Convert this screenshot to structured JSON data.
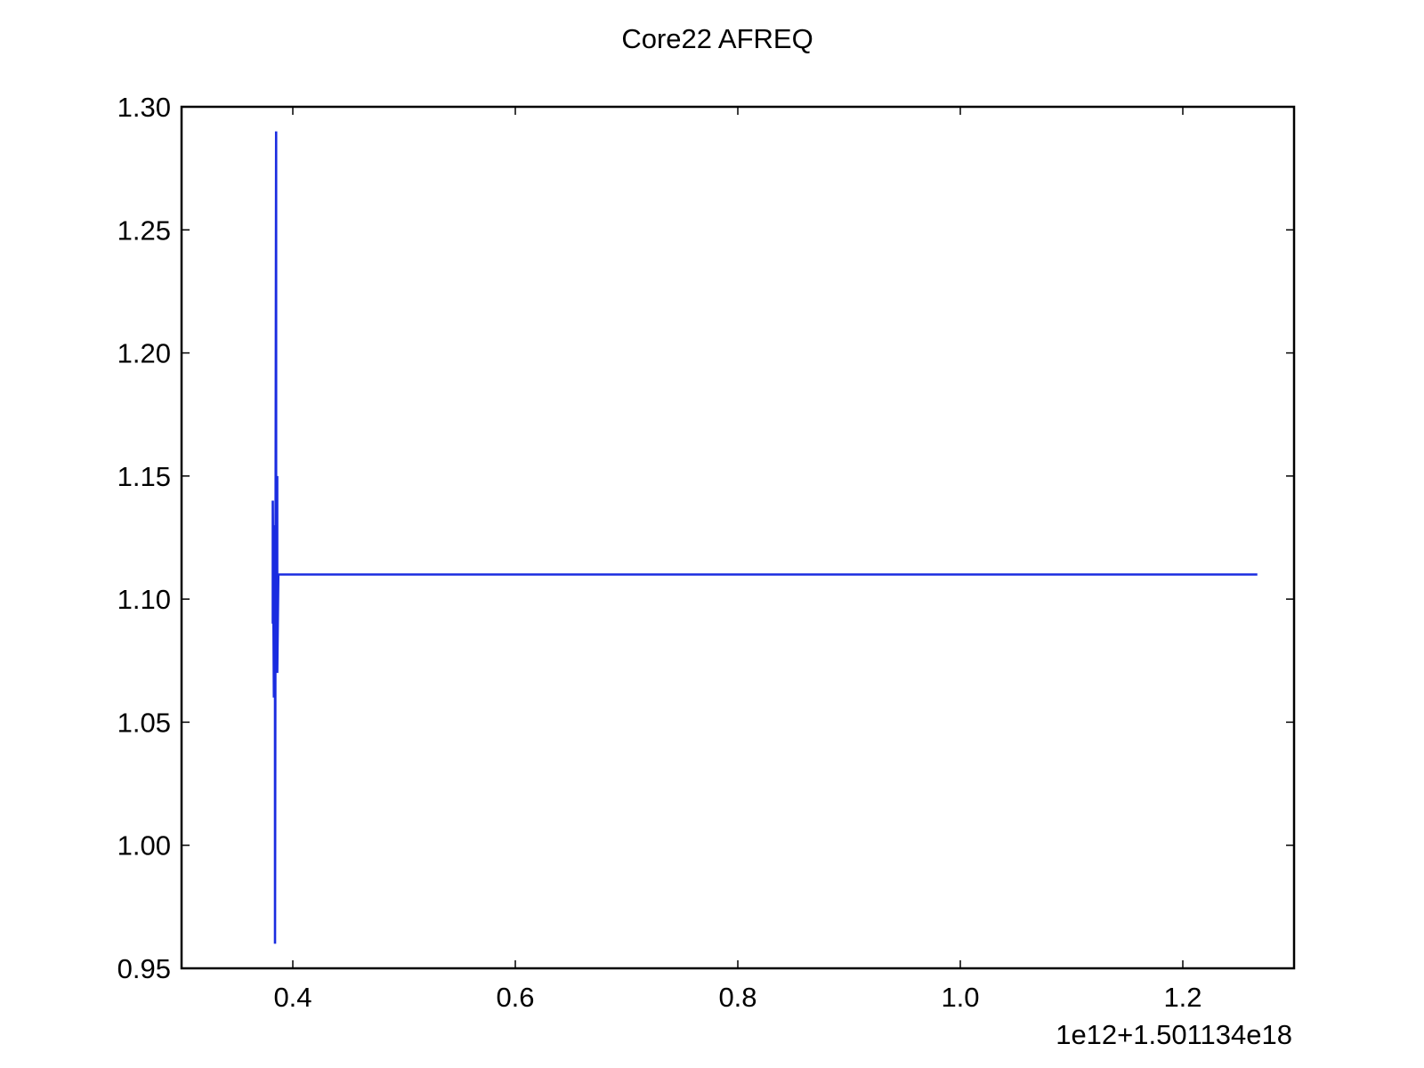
{
  "chart_data": {
    "type": "line",
    "title": "Core22 AFREQ",
    "xlabel": "",
    "ylabel": "",
    "x_offset_label": "1e12+1.501134e18",
    "xlim": [
      0.3,
      1.3
    ],
    "ylim": [
      0.95,
      1.3
    ],
    "x_ticks": [
      0.4,
      0.6,
      0.8,
      1.0,
      1.2
    ],
    "x_tick_labels": [
      "0.4",
      "0.6",
      "0.8",
      "1.0",
      "1.2"
    ],
    "y_ticks": [
      0.95,
      1.0,
      1.05,
      1.1,
      1.15,
      1.2,
      1.25,
      1.3
    ],
    "y_tick_labels": [
      "0.95",
      "1.00",
      "1.05",
      "1.10",
      "1.15",
      "1.20",
      "1.25",
      "1.30"
    ],
    "grid": false,
    "legend": "none",
    "series": [
      {
        "color": "#1a2ce0",
        "x": [
          0.382,
          0.382,
          0.383,
          0.383,
          0.384,
          0.384,
          0.385,
          0.385,
          0.386,
          0.386,
          0.387,
          0.387,
          1.267
        ],
        "y": [
          1.09,
          1.14,
          1.06,
          1.13,
          1.11,
          0.96,
          1.29,
          1.07,
          1.15,
          1.07,
          1.11,
          1.11,
          1.11
        ]
      }
    ]
  }
}
